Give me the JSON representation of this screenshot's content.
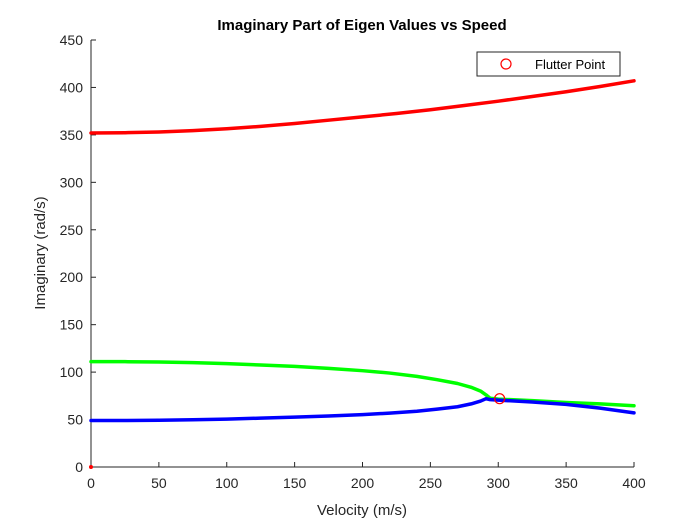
{
  "chart_data": {
    "type": "line",
    "title": "Imaginary Part of Eigen Values vs Speed",
    "xlabel": "Velocity (m/s)",
    "ylabel": "Imaginary (rad/s)",
    "xlim": [
      0,
      400
    ],
    "ylim": [
      0,
      450
    ],
    "xticks": [
      0,
      50,
      100,
      150,
      200,
      250,
      300,
      350,
      400
    ],
    "yticks": [
      0,
      50,
      100,
      150,
      200,
      250,
      300,
      350,
      400,
      450
    ],
    "grid": false,
    "legend": {
      "placement": "top-right",
      "entries": [
        "Flutter Point"
      ]
    },
    "series": [
      {
        "color": "#ff0000",
        "x": [
          0,
          25,
          50,
          75,
          100,
          125,
          150,
          175,
          200,
          225,
          250,
          275,
          300,
          325,
          350,
          375,
          400
        ],
        "y": [
          352,
          352.3,
          353,
          354.5,
          356.5,
          359,
          362,
          365.5,
          369,
          372.5,
          376.5,
          381,
          385.5,
          390.5,
          395.5,
          401,
          407
        ]
      },
      {
        "color": "#00ff00",
        "x": [
          0,
          25,
          50,
          75,
          100,
          125,
          150,
          175,
          200,
          220,
          240,
          255,
          270,
          280,
          287,
          291,
          294,
          300,
          325,
          350,
          375,
          400
        ],
        "y": [
          111,
          111,
          110.7,
          110,
          109,
          107.5,
          106,
          104,
          101.5,
          99,
          95.5,
          92,
          88,
          84,
          80,
          76,
          72.5,
          71.5,
          70,
          68,
          66.5,
          64.5
        ]
      },
      {
        "color": "#0000ff",
        "x": [
          0,
          25,
          50,
          75,
          100,
          125,
          150,
          175,
          200,
          220,
          240,
          255,
          270,
          280,
          287,
          291,
          294,
          300,
          325,
          350,
          375,
          400
        ],
        "y": [
          49,
          49,
          49.3,
          49.8,
          50.5,
          51.5,
          52.5,
          53.8,
          55.2,
          56.8,
          58.8,
          61,
          63.5,
          66.5,
          69.5,
          72,
          71,
          70.5,
          68.5,
          66,
          62,
          57
        ]
      }
    ],
    "markers": [
      {
        "name": "Flutter Point",
        "x": 301,
        "y": 72,
        "symbol": "circle",
        "color": "#ff0000"
      },
      {
        "x": 0,
        "y": 0,
        "symbol": "dot",
        "color": "#ff0000"
      }
    ]
  }
}
